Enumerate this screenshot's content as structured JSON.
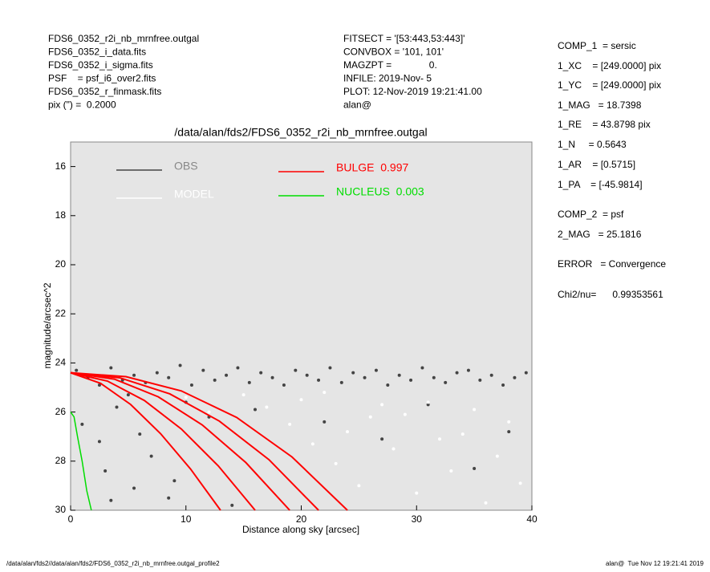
{
  "header": {
    "left": [
      "FDS6_0352_r2i_nb_mrnfree.outgal",
      "FDS6_0352_i_data.fits",
      "FDS6_0352_i_sigma.fits",
      "PSF    = psf_i6_over2.fits",
      "FDS6_0352_r_finmask.fits",
      "pix (\") =  0.2000"
    ],
    "middle": [
      "FITSECT = '[53:443,53:443]'",
      "CONVBOX = '101, 101'",
      "MAGZPT =              0.",
      "INFILE: 2019-Nov- 5",
      "PLOT: 12-Nov-2019 19:21:41.00",
      "alan@"
    ]
  },
  "params": [
    "COMP_1  = sersic",
    "1_XC    = [249.0000] pix",
    "1_YC    = [249.0000] pix",
    "1_MAG   = 18.7398",
    "1_RE    = 43.8798 pix",
    "1_N     = 0.5643",
    "1_AR    = [0.5715]",
    "1_PA    = [-45.9814]",
    "COMP_2  = psf",
    "2_MAG   = 25.1816",
    "ERROR   = Convergence",
    "Chi2/nu=      0.99353561"
  ],
  "footer": {
    "left": "/data/alan/fds2//data/alan/fds2/FDS6_0352_r2i_nb_mrnfree.outgal_profile2",
    "right": "alan@  Tue Nov 12 19:21:41 2019"
  },
  "chart_data": {
    "type": "scatter",
    "title": "/data/alan/fds2/FDS6_0352_r2i_nb_mrnfree.outgal",
    "x_label": "Distance along sky [arcsec]",
    "y_label": "magnitude/arcsec^2",
    "xlim": [
      0,
      40
    ],
    "ylim": [
      30,
      15
    ],
    "xticks": [
      0,
      10,
      20,
      30,
      40
    ],
    "yticks": [
      16,
      18,
      20,
      22,
      24,
      26,
      28,
      30
    ],
    "series": [
      {
        "name": "OBS",
        "color": "#444444",
        "x": [
          0.5,
          1.5,
          2.5,
          3.5,
          4.5,
          5.5,
          6.5,
          7.5,
          8.5,
          9.5,
          10.5,
          11.5,
          12.5,
          13.5,
          14.5,
          15.5,
          16.5,
          17.5,
          18.5,
          19.5,
          20.5,
          21.5,
          22.5,
          23.5,
          24.5,
          25.5,
          26.5,
          27.5,
          28.5,
          29.5,
          30.5,
          31.5,
          32.5,
          33.5,
          34.5,
          35.5,
          36.5,
          37.5,
          38.5,
          39.5,
          1,
          2.5,
          3,
          4,
          5.5,
          6,
          7,
          8.5,
          10,
          12,
          14,
          16,
          22,
          27,
          31,
          35,
          38,
          5,
          9,
          3.5
        ],
        "values": [
          24.3,
          24.6,
          24.9,
          24.2,
          24.7,
          24.5,
          24.8,
          24.4,
          24.6,
          24.1,
          24.9,
          24.3,
          24.7,
          24.5,
          24.2,
          24.8,
          24.4,
          24.6,
          24.9,
          24.3,
          24.5,
          24.7,
          24.2,
          24.8,
          24.4,
          24.6,
          24.3,
          24.9,
          24.5,
          24.7,
          24.2,
          24.6,
          24.8,
          24.4,
          24.3,
          24.7,
          24.5,
          24.9,
          24.6,
          24.4,
          26.5,
          27.2,
          28.4,
          25.8,
          29.1,
          26.9,
          27.8,
          29.5,
          25.6,
          26.2,
          29.8,
          25.9,
          26.4,
          27.1,
          25.7,
          28.3,
          26.8,
          25.3,
          28.8,
          29.6
        ]
      },
      {
        "name": "MODEL",
        "color": "#ffffff",
        "x": [
          10,
          12,
          15,
          17,
          19,
          21,
          23,
          25,
          26,
          28,
          30,
          31,
          33,
          34,
          36,
          37,
          39,
          22,
          27,
          32,
          35,
          38,
          29,
          24,
          20
        ],
        "values": [
          25.4,
          26.0,
          25.3,
          25.8,
          26.5,
          27.3,
          28.1,
          29.0,
          26.2,
          27.5,
          29.3,
          25.6,
          28.4,
          26.9,
          29.7,
          27.8,
          28.9,
          25.2,
          25.7,
          27.1,
          25.9,
          26.4,
          26.1,
          26.8,
          25.5
        ]
      },
      {
        "name": "BULGE  0.997",
        "color": "#ff0000",
        "curves": [
          {
            "x": [
              0,
              2.6,
              5.2,
              7.8,
              10.4,
              13
            ],
            "values": [
              24.4,
              24.83,
              25.69,
              26.88,
              28.32,
              30
            ]
          },
          {
            "x": [
              0,
              3.2,
              6.4,
              9.6,
              12.8,
              16
            ],
            "values": [
              24.4,
              24.74,
              25.53,
              26.69,
              28.19,
              30
            ]
          },
          {
            "x": [
              0,
              3.8,
              7.6,
              11.4,
              15.2,
              19
            ],
            "values": [
              24.4,
              24.66,
              25.38,
              26.52,
              28.06,
              30
            ]
          },
          {
            "x": [
              0,
              4.3,
              8.6,
              12.9,
              17.2,
              21.5
            ],
            "values": [
              24.4,
              24.61,
              25.26,
              26.37,
              27.94,
              30
            ]
          },
          {
            "x": [
              0,
              4.8,
              9.6,
              14.4,
              19.2,
              24
            ],
            "values": [
              24.4,
              24.56,
              25.14,
              26.22,
              27.83,
              30
            ]
          }
        ]
      },
      {
        "name": "NUCLEUS  0.003",
        "color": "#00dd00",
        "x": [
          0,
          0.3,
          0.6,
          1,
          1.4,
          1.8
        ],
        "values": [
          26.0,
          26.2,
          27,
          28,
          29.2,
          30
        ]
      }
    ]
  }
}
